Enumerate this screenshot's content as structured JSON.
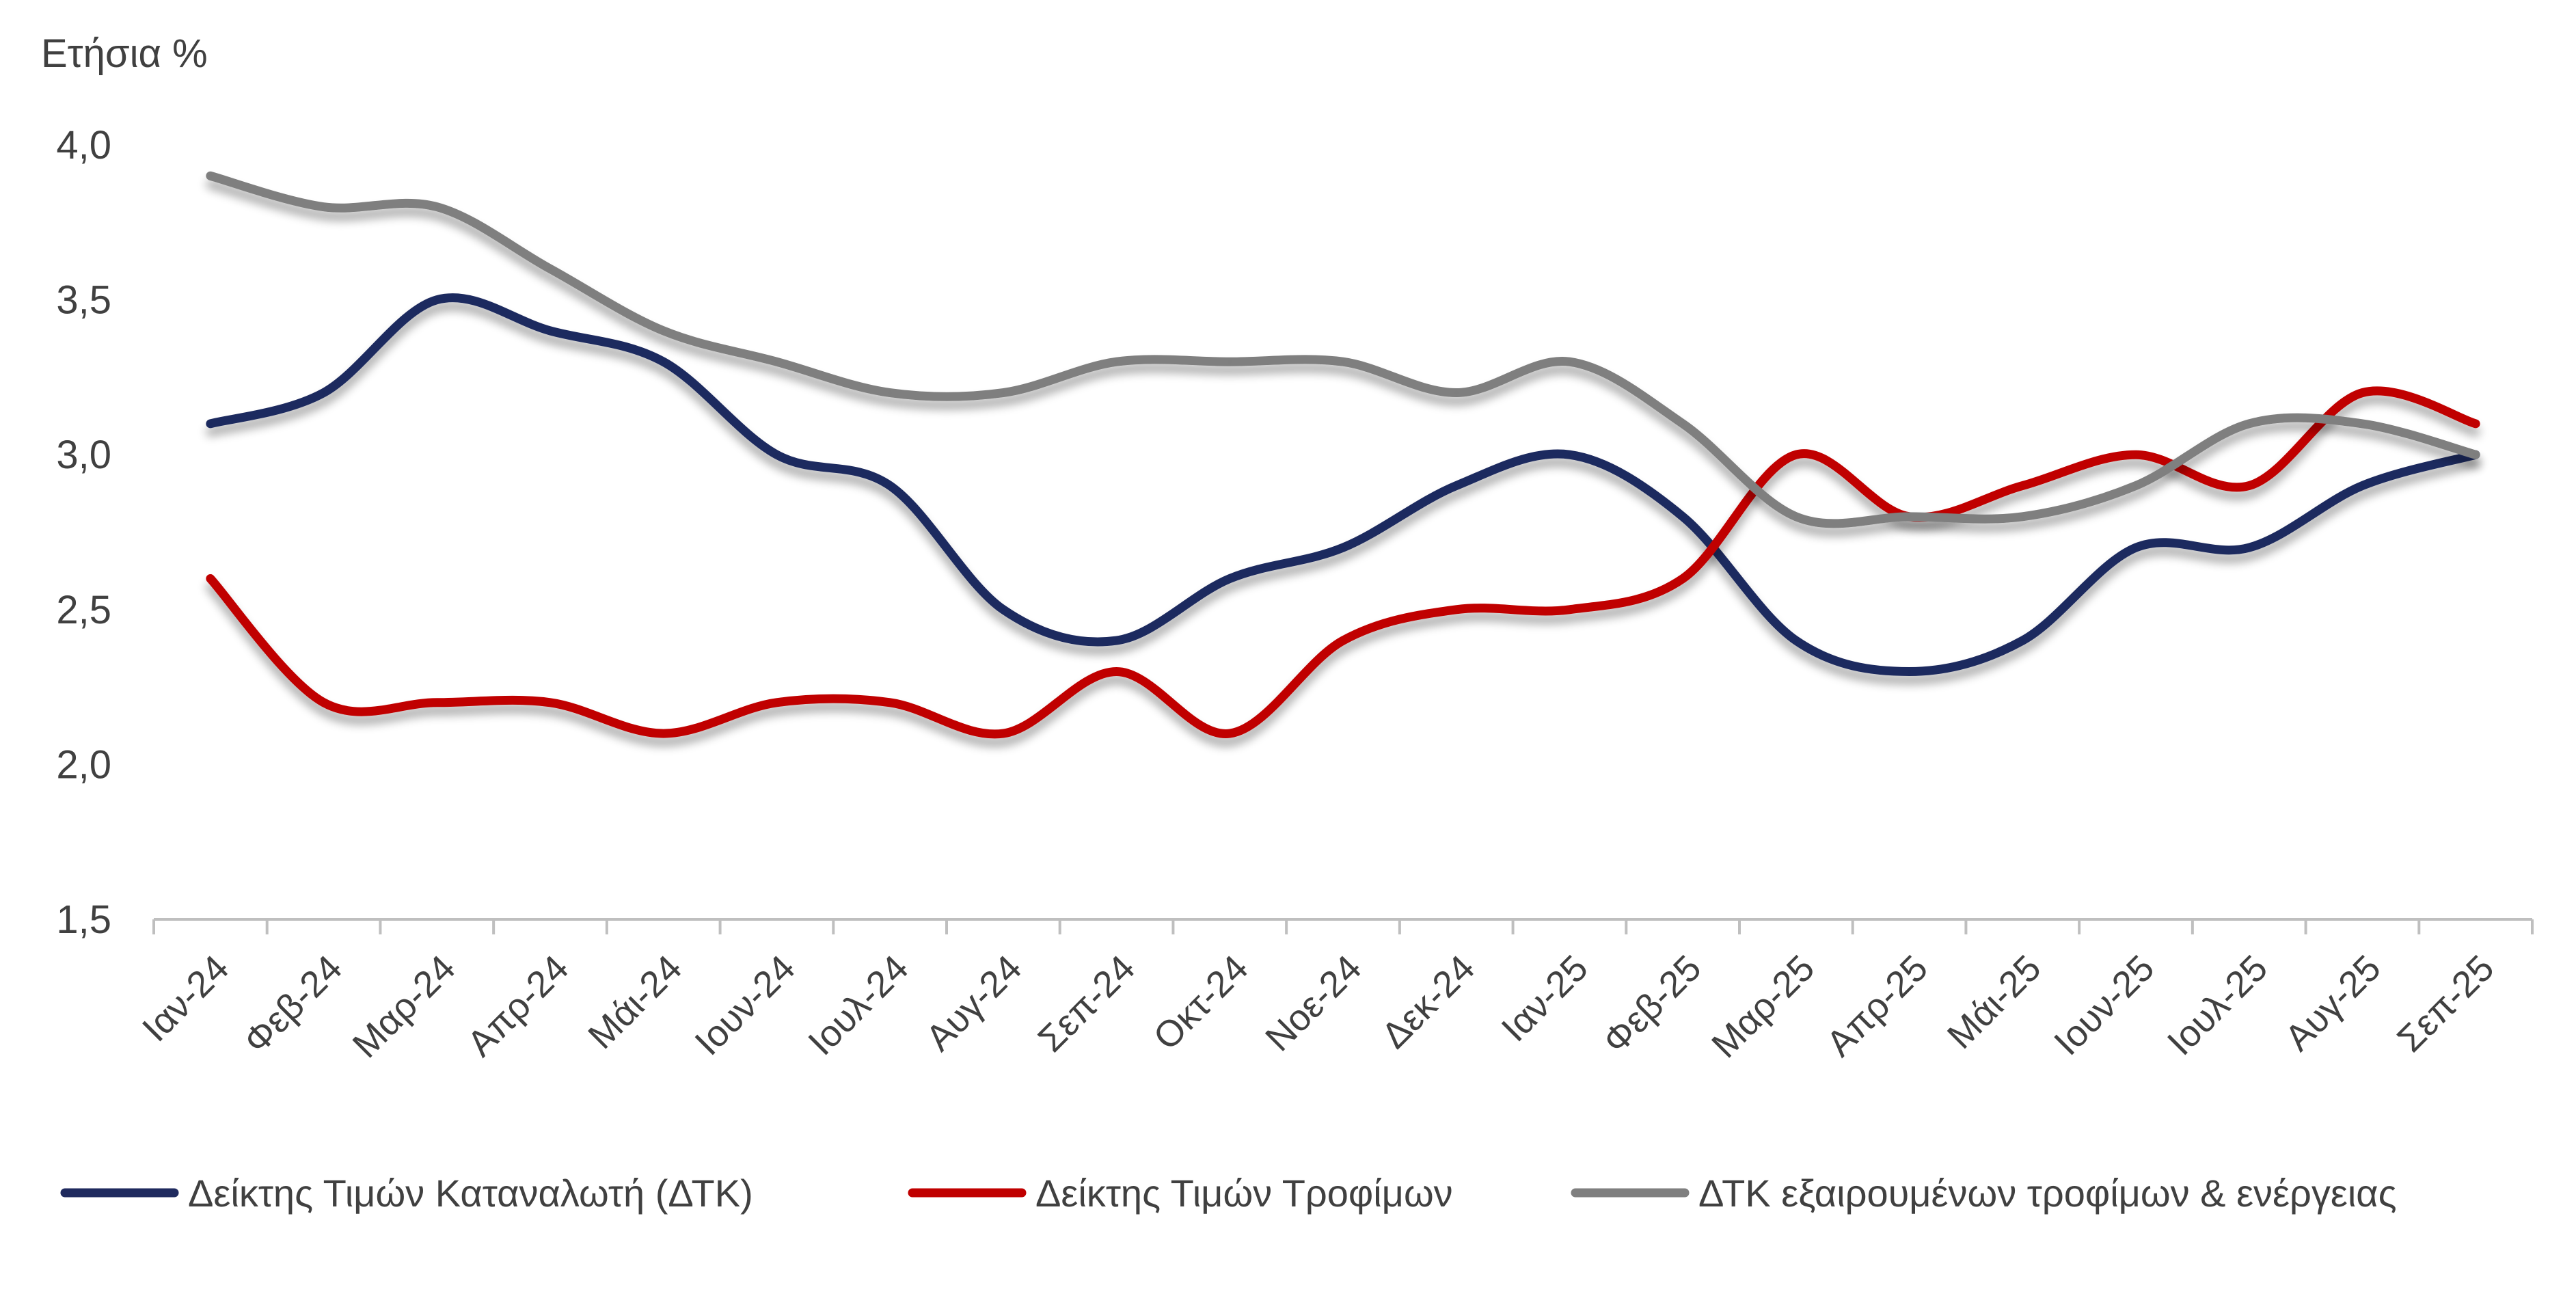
{
  "chart_data": {
    "type": "line",
    "ylabel": "Ετήσια %",
    "ylim": [
      1.5,
      4.0
    ],
    "yticks": [
      "1,5",
      "2,0",
      "2,5",
      "3,0",
      "3,5",
      "4,0"
    ],
    "ytick_values": [
      1.5,
      2.0,
      2.5,
      3.0,
      3.5,
      4.0
    ],
    "grid": false,
    "legend_position": "bottom",
    "categories": [
      "Ιαν-24",
      "Φεβ-24",
      "Μαρ-24",
      "Απρ-24",
      "Μάι-24",
      "Ιουν-24",
      "Ιουλ-24",
      "Αυγ-24",
      "Σεπ-24",
      "Οκτ-24",
      "Νοε-24",
      "Δεκ-24",
      "Ιαν-25",
      "Φεβ-25",
      "Μαρ-25",
      "Απρ-25",
      "Μάι-25",
      "Ιουν-25",
      "Ιουλ-25",
      "Αυγ-25",
      "Σεπ-25"
    ],
    "series": [
      {
        "name": "Δείκτης Τιμών Καταναλωτή (ΔΤΚ)",
        "color": "#1f2a5e",
        "values": [
          3.1,
          3.2,
          3.5,
          3.4,
          3.3,
          3.0,
          2.9,
          2.5,
          2.4,
          2.6,
          2.7,
          2.9,
          3.0,
          2.8,
          2.4,
          2.3,
          2.4,
          2.7,
          2.7,
          2.9,
          3.0
        ]
      },
      {
        "name": "Δείκτης Τιμών Τροφίμων",
        "color": "#c00000",
        "values": [
          2.6,
          2.2,
          2.2,
          2.2,
          2.1,
          2.2,
          2.2,
          2.1,
          2.3,
          2.1,
          2.4,
          2.5,
          2.5,
          2.6,
          3.0,
          2.8,
          2.9,
          3.0,
          2.9,
          3.2,
          3.1
        ]
      },
      {
        "name": "ΔΤΚ εξαιρουμένων τροφίμων & ενέργειας",
        "color": "#7f7f7f",
        "values": [
          3.9,
          3.8,
          3.8,
          3.6,
          3.4,
          3.3,
          3.2,
          3.2,
          3.3,
          3.3,
          3.3,
          3.2,
          3.3,
          3.1,
          2.8,
          2.8,
          2.8,
          2.9,
          3.1,
          3.1,
          3.0
        ]
      }
    ]
  }
}
